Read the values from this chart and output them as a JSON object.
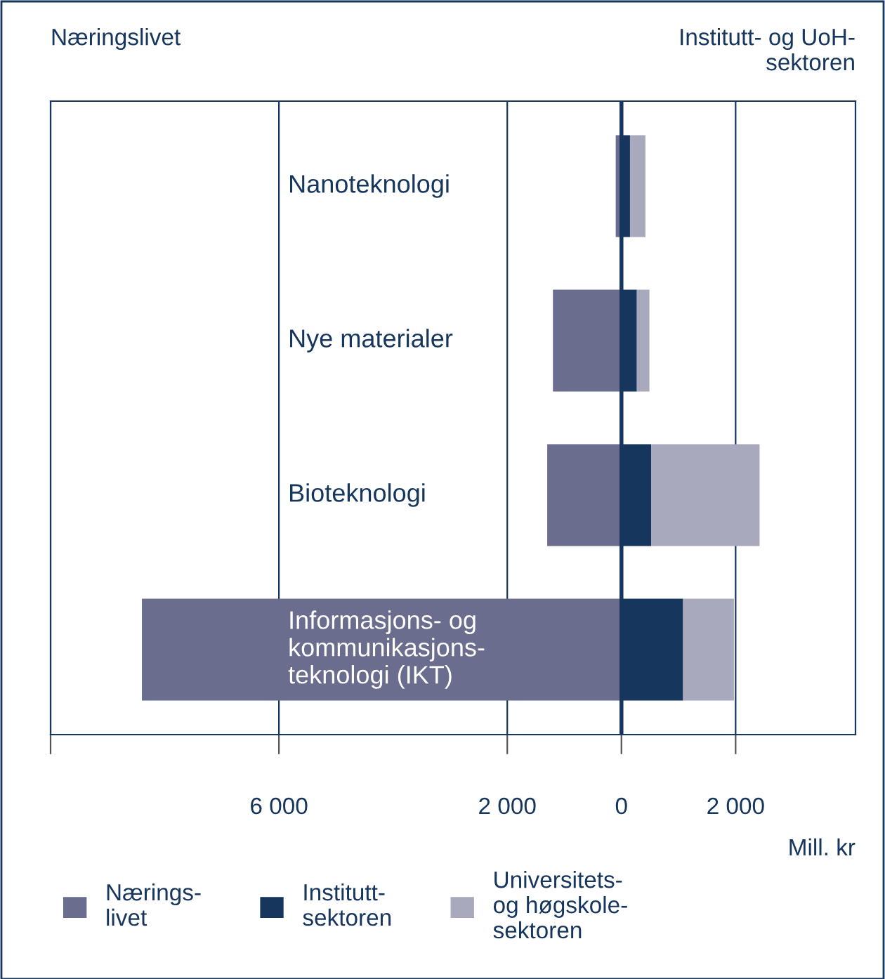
{
  "chart_data": {
    "type": "bar",
    "orientation": "horizontal",
    "stacked": true,
    "categories": [
      "Nanoteknologi",
      "Nye materialer",
      "Bioteknologi",
      "Informasjons- og\nkommunikasjons-\nteknologi (IKT)"
    ],
    "series": [
      {
        "name": "Nærings-\nlivet",
        "color": "#6b6d8e",
        "values": [
          -100,
          -1200,
          -1300,
          -8400
        ]
      },
      {
        "name": "Institutt-\nsektoren",
        "color": "#17365d",
        "values": [
          150,
          270,
          520,
          1080
        ]
      },
      {
        "name": "Universitets-\nog høgskole-\nsektoren",
        "color": "#a8a9bc",
        "values": [
          270,
          220,
          1900,
          890
        ]
      }
    ],
    "xlim": [
      -10000,
      4100
    ],
    "xticks": [
      {
        "value": -10000,
        "label": null
      },
      {
        "value": -6000,
        "label": "6 000"
      },
      {
        "value": -2000,
        "label": "2 000"
      },
      0,
      {
        "value": 2000,
        "label": "2 000"
      }
    ],
    "xlabel": "Mill. kr",
    "grid": "x",
    "legend": "bottom",
    "ref_lines": [
      {
        "axis": "x",
        "value": 0,
        "label": null,
        "color": "#17365d"
      }
    ],
    "annotations": [
      "Næringslivet",
      "Institutt- og UoH-\nsektoren"
    ]
  }
}
